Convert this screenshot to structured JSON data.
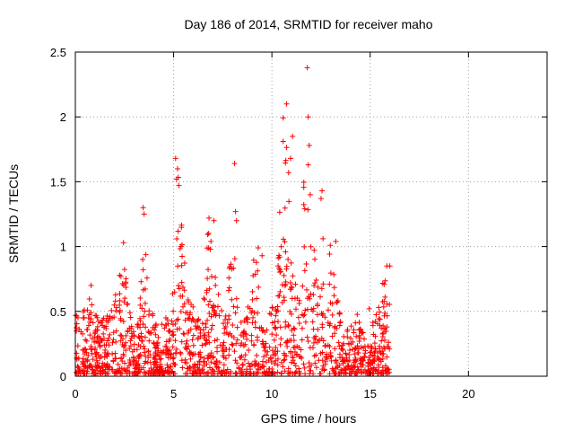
{
  "chart_data": {
    "type": "scatter",
    "title": "Day 186 of 2014, SRMTID for receiver maho",
    "xlabel": "GPS time / hours",
    "ylabel": "SRMTID / TECUs",
    "xlim": [
      0,
      24
    ],
    "ylim": [
      0,
      2.5
    ],
    "xticks": [
      0,
      5,
      10,
      15,
      20
    ],
    "xtick_labels": [
      "0",
      "5",
      "10",
      "15",
      "20"
    ],
    "yticks": [
      0,
      0.5,
      1,
      1.5,
      2,
      2.5
    ],
    "ytick_labels": [
      "0",
      "0.5",
      "1",
      "1.5",
      "2",
      "2.5"
    ],
    "grid": true,
    "marker": "plus",
    "series": [
      {
        "name": "SRMTID",
        "color": "#ff0000",
        "envelope": {
          "note": "approximate upper envelope of the dense point cloud, sampled every 0.25 h",
          "step": 0.25,
          "x_start": 0,
          "values": [
            0.52,
            0.48,
            0.55,
            0.7,
            0.5,
            0.48,
            0.44,
            0.5,
            0.62,
            0.78,
            0.86,
            0.55,
            0.4,
            0.45,
            1.3,
            0.7,
            0.4,
            0.38,
            0.45,
            0.45,
            0.7,
            1.68,
            1.05,
            0.62,
            0.55,
            0.45,
            0.5,
            1.22,
            0.8,
            0.72,
            0.55,
            0.5,
            1.65,
            0.75,
            0.5,
            0.48,
            1.0,
            0.92,
            0.4,
            0.48,
            0.55,
            0.5,
            2.1,
            1.85,
            0.8,
            0.75,
            0.72,
            2.4,
            1.45,
            0.8,
            0.7,
            0.75,
            1.05,
            0.68,
            0.45,
            0.35,
            0.4,
            0.5,
            0.45,
            0.25,
            0.35,
            0.45,
            0.6,
            0.82,
            0.85
          ],
          "noise_floor": 0.02
        },
        "highlights": [
          {
            "x": 0.05,
            "y": 0.03
          },
          {
            "x": 0.8,
            "y": 0.7
          },
          {
            "x": 2.45,
            "y": 1.03
          },
          {
            "x": 3.45,
            "y": 1.3
          },
          {
            "x": 3.5,
            "y": 1.25
          },
          {
            "x": 5.1,
            "y": 1.68
          },
          {
            "x": 5.2,
            "y": 1.6
          },
          {
            "x": 5.15,
            "y": 1.52
          },
          {
            "x": 6.8,
            "y": 1.22
          },
          {
            "x": 7.05,
            "y": 1.2
          },
          {
            "x": 6.9,
            "y": 1.04
          },
          {
            "x": 8.1,
            "y": 1.64
          },
          {
            "x": 8.15,
            "y": 1.27
          },
          {
            "x": 8.2,
            "y": 1.2
          },
          {
            "x": 9.3,
            "y": 0.99
          },
          {
            "x": 9.5,
            "y": 0.93
          },
          {
            "x": 10.75,
            "y": 2.1
          },
          {
            "x": 11.05,
            "y": 1.85
          },
          {
            "x": 10.95,
            "y": 1.68
          },
          {
            "x": 10.85,
            "y": 1.57
          },
          {
            "x": 11.8,
            "y": 2.38
          },
          {
            "x": 11.85,
            "y": 2.0
          },
          {
            "x": 11.9,
            "y": 1.78
          },
          {
            "x": 11.85,
            "y": 1.63
          },
          {
            "x": 11.95,
            "y": 1.4
          },
          {
            "x": 12.55,
            "y": 1.43
          },
          {
            "x": 12.5,
            "y": 1.37
          },
          {
            "x": 12.6,
            "y": 1.06
          },
          {
            "x": 13.25,
            "y": 1.04
          },
          {
            "x": 15.85,
            "y": 0.85
          },
          {
            "x": 16.0,
            "y": 0.85
          },
          {
            "x": 14.95,
            "y": 0.52
          }
        ]
      }
    ]
  }
}
